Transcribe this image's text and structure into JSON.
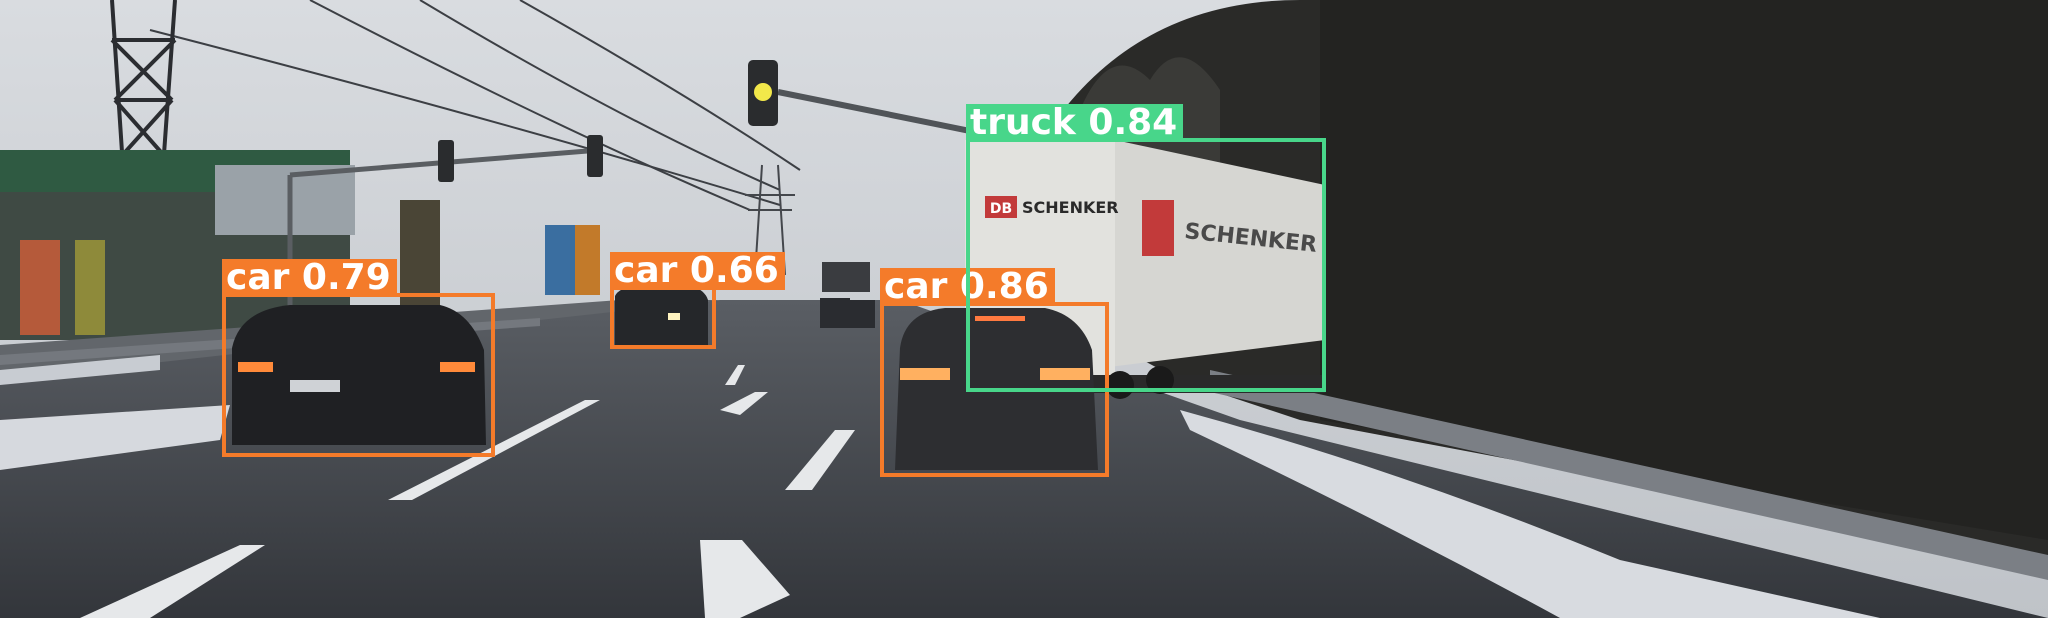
{
  "colors": {
    "car": "#F47B2A",
    "truck": "#48D68A"
  },
  "detections": [
    {
      "label": "car 0.79",
      "class": "car"
    },
    {
      "label": "car 0.66",
      "class": "car"
    },
    {
      "label": "car 0.86",
      "class": "car"
    },
    {
      "label": "truck 0.84",
      "class": "truck"
    }
  ],
  "truck_signage": {
    "logo": "DB",
    "brand": "SCHENKER"
  }
}
